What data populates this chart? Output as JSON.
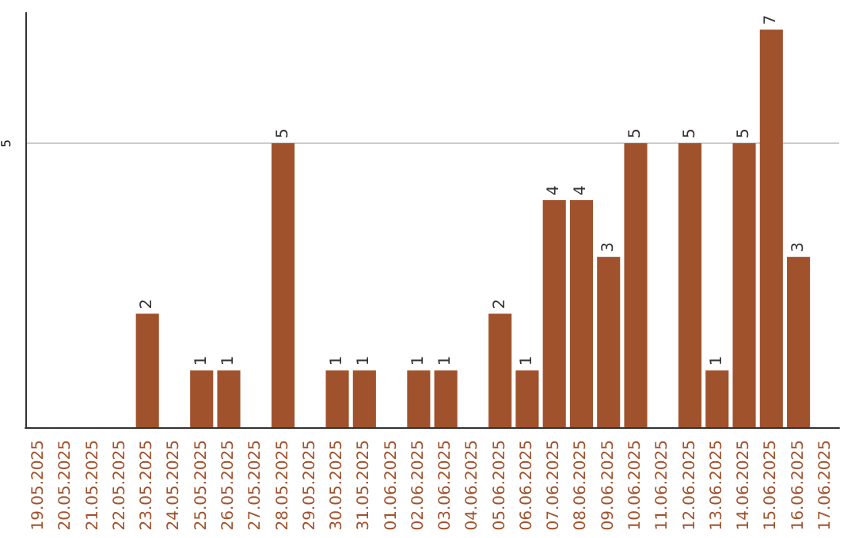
{
  "chart_data": {
    "type": "bar",
    "categories": [
      "19.05.2025",
      "20.05.2025",
      "21.05.2025",
      "22.05.2025",
      "23.05.2025",
      "24.05.2025",
      "25.05.2025",
      "26.05.2025",
      "27.05.2025",
      "28.05.2025",
      "29.05.2025",
      "30.05.2025",
      "31.05.2025",
      "01.06.2025",
      "02.06.2025",
      "03.06.2025",
      "04.06.2025",
      "05.06.2025",
      "06.06.2025",
      "07.06.2025",
      "08.06.2025",
      "09.06.2025",
      "10.06.2025",
      "11.06.2025",
      "12.06.2025",
      "13.06.2025",
      "14.06.2025",
      "15.06.2025",
      "16.06.2025",
      "17.06.2025"
    ],
    "values": [
      0,
      0,
      0,
      0,
      2,
      0,
      1,
      1,
      0,
      5,
      0,
      1,
      1,
      0,
      1,
      1,
      0,
      2,
      1,
      4,
      4,
      3,
      5,
      0,
      5,
      1,
      5,
      7,
      3,
      0
    ],
    "value_labels": [
      null,
      null,
      null,
      null,
      "2",
      null,
      "1",
      "1",
      null,
      "5",
      null,
      "1",
      "1",
      null,
      "1",
      "1",
      null,
      "2",
      "1",
      "4",
      "4",
      "3",
      "5",
      null,
      "5",
      "1",
      "5",
      "7",
      "3",
      null
    ],
    "color": "#a0522d",
    "ylim": [
      0,
      7.3
    ],
    "yticks": [
      5
    ],
    "grid": "y"
  }
}
